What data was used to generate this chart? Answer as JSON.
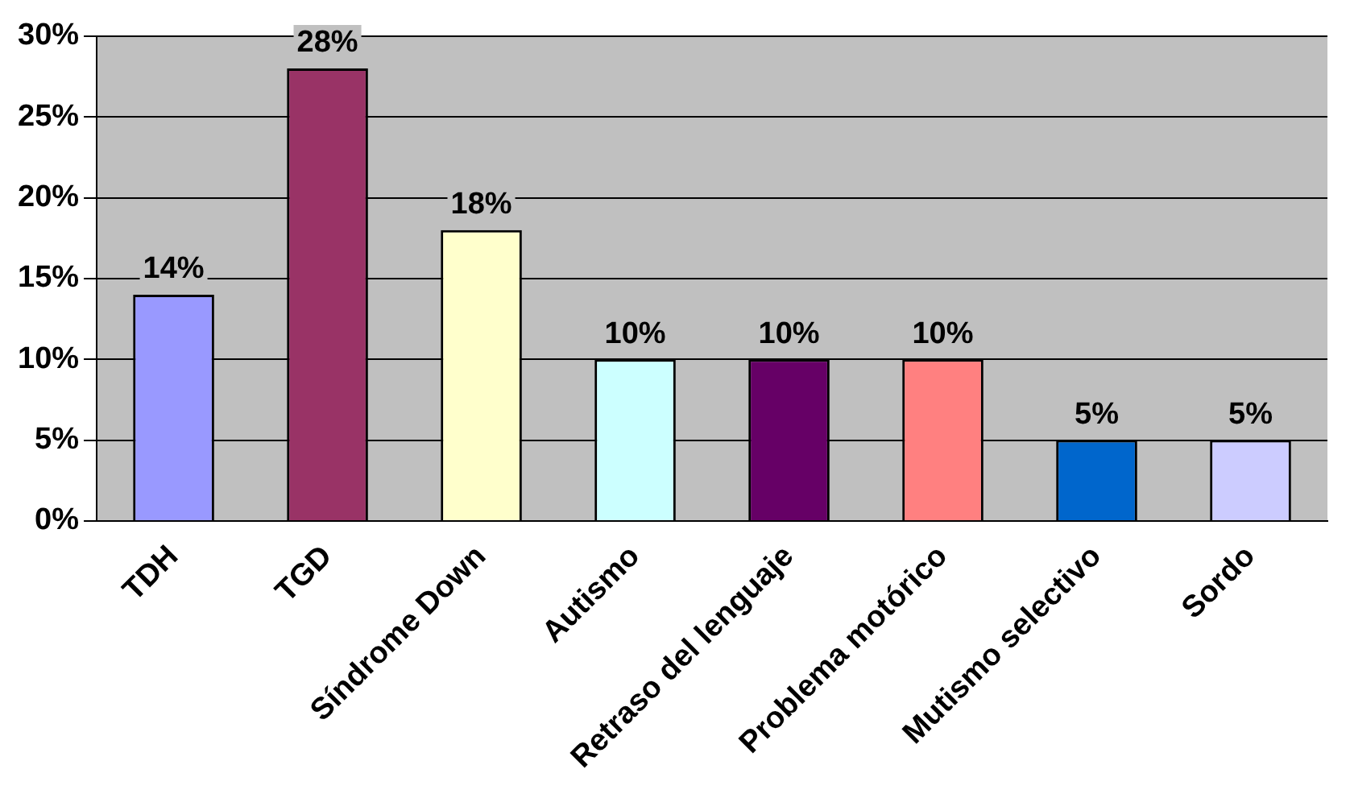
{
  "chart_data": {
    "type": "bar",
    "categories": [
      "TDH",
      "TGD",
      "Síndrome Down",
      "Autismo",
      "Retraso del lenguaje",
      "Problema motórico",
      "Mutismo selectivo",
      "Sordo"
    ],
    "values": [
      14,
      28,
      18,
      10,
      10,
      10,
      5,
      5
    ],
    "colors": [
      "#9999ff",
      "#993366",
      "#ffffcc",
      "#ccffff",
      "#660066",
      "#ff8080",
      "#0066cc",
      "#ccccff"
    ],
    "value_labels": [
      "14%",
      "28%",
      "18%",
      "10%",
      "10%",
      "10%",
      "5%",
      "5%"
    ],
    "ylim": [
      0,
      30
    ],
    "yticks": [
      {
        "value": 0,
        "label": "0%"
      },
      {
        "value": 5,
        "label": "5%"
      },
      {
        "value": 10,
        "label": "10%"
      },
      {
        "value": 15,
        "label": "15%"
      },
      {
        "value": 20,
        "label": "20%"
      },
      {
        "value": 25,
        "label": "25%"
      },
      {
        "value": 30,
        "label": "30%"
      }
    ],
    "grid": "y",
    "legend": false
  }
}
